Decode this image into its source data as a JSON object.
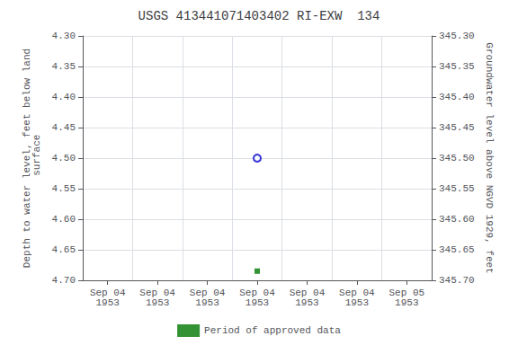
{
  "chart_data": {
    "type": "scatter",
    "title": "USGS 413441071403402 RI-EXW  134",
    "y_label": "Depth to water level, feet below land\n surface",
    "y2_label": "Groundwater level above NGVD 1929, feet",
    "categories": [
      "Sep 04\n1953",
      "Sep 04\n1953",
      "Sep 04\n1953",
      "Sep 04\n1953",
      "Sep 04\n1953",
      "Sep 04\n1953",
      "Sep 05\n1953"
    ],
    "ylim": [
      4.7,
      4.3
    ],
    "yticks": [
      {
        "value": 4.3,
        "label": "4.30"
      },
      {
        "value": 4.35,
        "label": "4.35"
      },
      {
        "value": 4.4,
        "label": "4.40"
      },
      {
        "value": 4.45,
        "label": "4.45"
      },
      {
        "value": 4.5,
        "label": "4.50"
      },
      {
        "value": 4.55,
        "label": "4.55"
      },
      {
        "value": 4.6,
        "label": "4.60"
      },
      {
        "value": 4.65,
        "label": "4.65"
      },
      {
        "value": 4.7,
        "label": "4.70"
      }
    ],
    "y2lim": [
      345.7,
      345.3
    ],
    "y2ticks": [
      {
        "value": 345.7,
        "label": "345.70"
      },
      {
        "value": 345.65,
        "label": "345.65"
      },
      {
        "value": 345.6,
        "label": "345.60"
      },
      {
        "value": 345.55,
        "label": "345.55"
      },
      {
        "value": 345.5,
        "label": "345.50"
      },
      {
        "value": 345.45,
        "label": "345.45"
      },
      {
        "value": 345.4,
        "label": "345.40"
      },
      {
        "value": 345.35,
        "label": "345.35"
      },
      {
        "value": 345.3,
        "label": "345.30"
      }
    ],
    "series": [
      {
        "color": "#0000cc",
        "marker": "open_circle",
        "values": [
          null,
          null,
          null,
          4.5,
          null,
          null,
          null
        ]
      },
      {
        "name": "Period of approved data",
        "color": "#007700",
        "marker": "square",
        "values": [
          null,
          null,
          null,
          4.685,
          null,
          null,
          null
        ]
      }
    ],
    "grid": true,
    "legend": "bottom"
  }
}
